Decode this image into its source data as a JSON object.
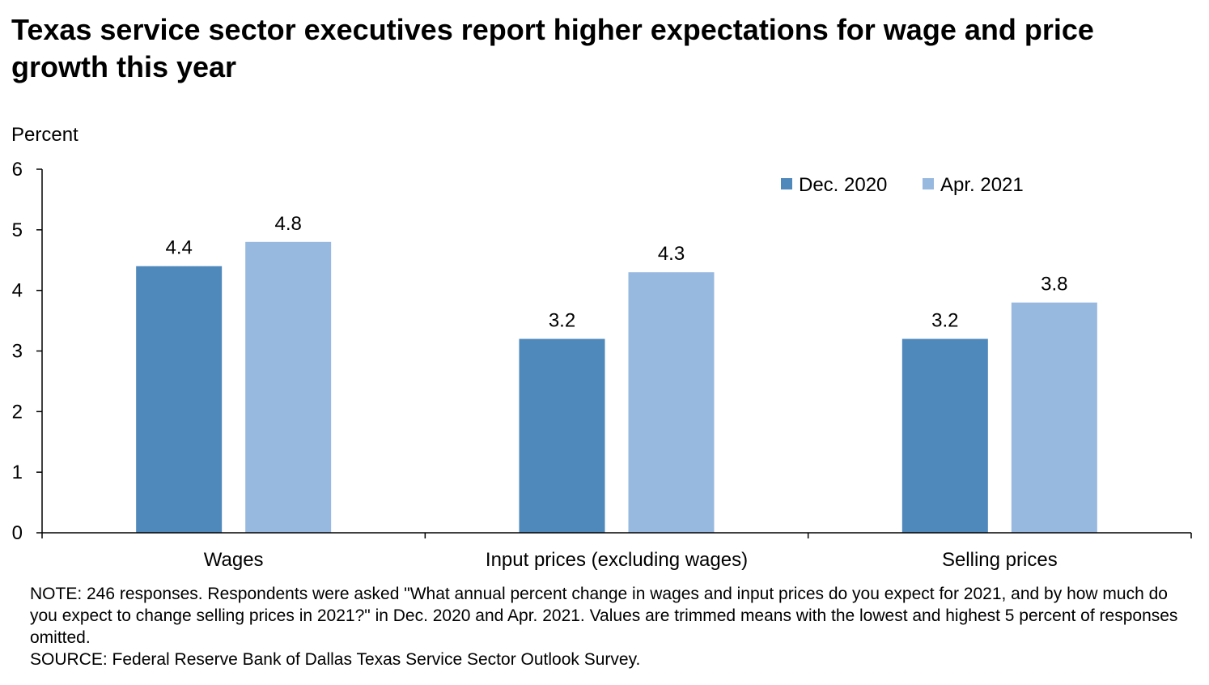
{
  "chart_data": {
    "type": "bar",
    "title": "Texas service sector executives report higher expectations for wage and price growth this year",
    "ylabel": "Percent",
    "xlabel": "",
    "categories": [
      "Wages",
      "Input prices (excluding wages)",
      "Selling prices"
    ],
    "series": [
      {
        "name": "Dec. 2020",
        "values": [
          4.4,
          3.2,
          3.2
        ],
        "color": "#4f88bb"
      },
      {
        "name": "Apr. 2021",
        "values": [
          4.8,
          4.3,
          3.8
        ],
        "color": "#98b9df"
      }
    ],
    "ylim": [
      0,
      6
    ],
    "yticks": [
      "0",
      "1",
      "2",
      "3",
      "4",
      "5",
      "6"
    ],
    "data_labels": true,
    "grid": false,
    "legend_position": "top-right"
  },
  "notes": {
    "note": "NOTE: 246 responses. Respondents were asked \"What annual percent change in wages and input prices do you expect for 2021, and by how much do you expect to change selling prices in 2021?\" in Dec. 2020 and Apr. 2021. Values are trimmed means with the lowest and highest 5 percent of responses omitted.",
    "source": "SOURCE: Federal Reserve Bank of Dallas Texas Service Sector Outlook Survey."
  }
}
